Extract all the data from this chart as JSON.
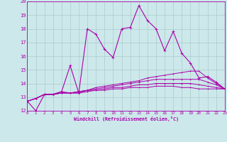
{
  "xlabel": "Windchill (Refroidissement éolien,°C)",
  "background_color": "#cce8ea",
  "grid_color": "#aacccc",
  "line_color": "#aa00aa",
  "xmin": 0,
  "xmax": 23,
  "ymin": 12,
  "ymax": 20,
  "x_ticks": [
    0,
    1,
    2,
    3,
    4,
    5,
    6,
    7,
    8,
    9,
    10,
    11,
    12,
    13,
    14,
    15,
    16,
    17,
    18,
    19,
    20,
    21,
    22,
    23
  ],
  "y_ticks": [
    12,
    13,
    14,
    15,
    16,
    17,
    18,
    19,
    20
  ],
  "series": [
    [
      12.7,
      12.0,
      13.2,
      13.2,
      13.4,
      15.3,
      13.3,
      18.0,
      17.6,
      16.5,
      15.9,
      18.0,
      18.1,
      19.7,
      18.6,
      18.0,
      16.4,
      17.8,
      16.2,
      15.5,
      14.4,
      14.5,
      14.1,
      13.6
    ],
    [
      12.7,
      12.9,
      13.2,
      13.2,
      13.4,
      13.3,
      13.3,
      13.5,
      13.7,
      13.8,
      13.9,
      14.0,
      14.1,
      14.2,
      14.4,
      14.5,
      14.6,
      14.7,
      14.8,
      14.9,
      14.9,
      14.4,
      14.0,
      13.6
    ],
    [
      12.7,
      12.9,
      13.2,
      13.2,
      13.3,
      13.3,
      13.4,
      13.5,
      13.6,
      13.7,
      13.8,
      13.9,
      14.0,
      14.1,
      14.2,
      14.3,
      14.3,
      14.3,
      14.3,
      14.3,
      14.3,
      14.1,
      13.9,
      13.6
    ],
    [
      12.7,
      12.9,
      13.2,
      13.2,
      13.3,
      13.3,
      13.4,
      13.5,
      13.5,
      13.6,
      13.7,
      13.7,
      13.8,
      13.9,
      13.9,
      14.0,
      14.0,
      14.0,
      14.0,
      14.0,
      13.9,
      13.8,
      13.7,
      13.6
    ],
    [
      12.7,
      12.9,
      13.2,
      13.2,
      13.3,
      13.3,
      13.3,
      13.4,
      13.5,
      13.5,
      13.6,
      13.6,
      13.7,
      13.7,
      13.7,
      13.8,
      13.8,
      13.8,
      13.7,
      13.7,
      13.6,
      13.6,
      13.6,
      13.6
    ]
  ]
}
